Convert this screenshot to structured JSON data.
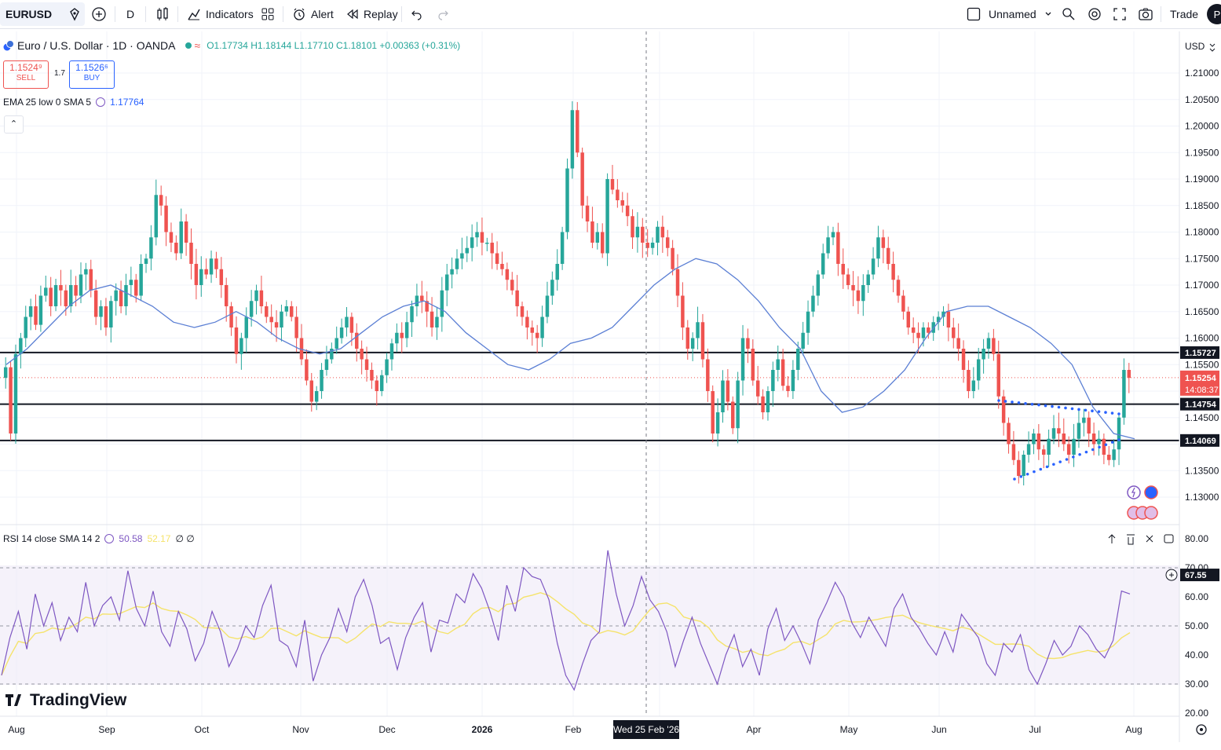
{
  "toolbar": {
    "symbol": "EURUSD",
    "interval": "D",
    "indicators_label": "Indicators",
    "alert_label": "Alert",
    "replay_label": "Replay",
    "layout_name": "Unnamed",
    "trade_label": "Trade",
    "profile_initial": "P"
  },
  "legend": {
    "instrument": "Euro / U.S. Dollar · 1D · OANDA",
    "ohlc": "O1.17734 H1.18144 L1.17710 C1.18101 +0.00363 (+0.31%)",
    "sell_price": "1.1524⁹",
    "sell_label": "SELL",
    "spread": "1.7",
    "buy_price": "1.1526⁶",
    "buy_label": "BUY",
    "ema_label": "EMA 25 low 0 SMA 5",
    "ema_value": "1.17764",
    "rsi_label": "RSI 14 close SMA 14 2",
    "rsi_value": "50.58",
    "rsi_sma_value": "52.17",
    "rsi_extra": "∅ ∅"
  },
  "colors": {
    "up": "#26a69a",
    "down": "#ef5350",
    "ema": "#5b7fd4",
    "rsi": "#7e57c2",
    "rsi_sma": "#f5e36b",
    "rsi_band": "#ede7f6",
    "pattern_dots": "#2962ff"
  },
  "axis": {
    "currency": "USD",
    "crosshair_date": "Wed 25 Feb '26",
    "watermark": "TradingView"
  },
  "chart_data": {
    "type": "candlestick",
    "symbol": "EURUSD",
    "timeframe": "1D",
    "y_ticks": [
      "1.30000",
      "1.13500",
      "1.14500",
      "1.15500",
      "1.16000",
      "1.16500",
      "1.17000",
      "1.17500",
      "1.18000",
      "1.18500",
      "1.19000",
      "1.19500",
      "1.20000",
      "1.20500",
      "1.21000"
    ],
    "x_ticks": [
      "Aug",
      "Sep",
      "Oct",
      "Nov",
      "Dec",
      "2026",
      "Feb",
      "Mar",
      "Apr",
      "May",
      "Jun",
      "Jul",
      "Aug"
    ],
    "ylim": [
      1.1245,
      1.2145
    ],
    "horizontal_levels": [
      {
        "value": 1.15727,
        "label": "1.15727"
      },
      {
        "value": 1.14754,
        "label": "1.14754"
      },
      {
        "value": 1.14069,
        "label": "1.14069"
      }
    ],
    "last_price": {
      "value": 1.15254,
      "label": "1.15254",
      "countdown": "14:08:37"
    },
    "closes": [
      1.1545,
      1.142,
      1.157,
      1.16,
      1.164,
      1.166,
      1.1625,
      1.168,
      1.1695,
      1.166,
      1.17,
      1.169,
      1.166,
      1.17,
      1.168,
      1.172,
      1.173,
      1.169,
      1.164,
      1.166,
      1.162,
      1.167,
      1.169,
      1.166,
      1.17,
      1.171,
      1.168,
      1.174,
      1.175,
      1.179,
      1.187,
      1.185,
      1.18,
      1.178,
      1.176,
      1.182,
      1.178,
      1.174,
      1.17,
      1.173,
      1.172,
      1.175,
      1.173,
      1.17,
      1.166,
      1.162,
      1.157,
      1.16,
      1.164,
      1.167,
      1.169,
      1.166,
      1.164,
      1.163,
      1.162,
      1.165,
      1.166,
      1.164,
      1.16,
      1.156,
      1.152,
      1.148,
      1.15,
      1.154,
      1.156,
      1.158,
      1.16,
      1.162,
      1.164,
      1.161,
      1.158,
      1.156,
      1.154,
      1.152,
      1.15,
      1.153,
      1.156,
      1.159,
      1.161,
      1.16,
      1.163,
      1.166,
      1.168,
      1.167,
      1.165,
      1.162,
      1.164,
      1.169,
      1.172,
      1.173,
      1.175,
      1.176,
      1.177,
      1.179,
      1.18,
      1.178,
      1.178,
      1.176,
      1.174,
      1.173,
      1.171,
      1.169,
      1.166,
      1.164,
      1.162,
      1.161,
      1.16,
      1.164,
      1.168,
      1.171,
      1.174,
      1.18,
      1.192,
      1.203,
      1.195,
      1.185,
      1.182,
      1.178,
      1.18,
      1.176,
      1.19,
      1.188,
      1.186,
      1.185,
      1.183,
      1.179,
      1.181,
      1.178,
      1.177,
      1.178,
      1.181,
      1.179,
      1.177,
      1.173,
      1.168,
      1.162,
      1.158,
      1.16,
      1.163,
      1.156,
      1.15,
      1.142,
      1.146,
      1.152,
      1.148,
      1.143,
      1.152,
      1.16,
      1.158,
      1.152,
      1.149,
      1.146,
      1.15,
      1.154,
      1.156,
      1.151,
      1.15,
      1.154,
      1.158,
      1.161,
      1.165,
      1.168,
      1.172,
      1.176,
      1.179,
      1.18,
      1.174,
      1.172,
      1.17,
      1.169,
      1.167,
      1.17,
      1.172,
      1.175,
      1.179,
      1.177,
      1.174,
      1.171,
      1.168,
      1.165,
      1.162,
      1.161,
      1.16,
      1.162,
      1.161,
      1.163,
      1.164,
      1.165,
      1.162,
      1.16,
      1.158,
      1.154,
      1.15,
      1.152,
      1.156,
      1.158,
      1.16,
      1.157,
      1.149,
      1.144,
      1.14,
      1.137,
      1.134,
      1.138,
      1.14,
      1.142,
      1.139,
      1.138,
      1.141,
      1.143,
      1.142,
      1.14,
      1.138,
      1.141,
      1.144,
      1.145,
      1.142,
      1.14,
      1.141,
      1.138,
      1.137,
      1.139,
      1.145,
      1.154,
      1.1525
    ],
    "ema_approx": [
      1.155,
      1.158,
      1.162,
      1.166,
      1.169,
      1.17,
      1.168,
      1.166,
      1.163,
      1.162,
      1.163,
      1.165,
      1.163,
      1.16,
      1.158,
      1.157,
      1.158,
      1.161,
      1.164,
      1.166,
      1.167,
      1.165,
      1.161,
      1.158,
      1.155,
      1.154,
      1.156,
      1.159,
      1.16,
      1.162,
      1.166,
      1.17,
      1.173,
      1.175,
      1.174,
      1.171,
      1.167,
      1.162,
      1.158,
      1.15,
      1.146,
      1.147,
      1.15,
      1.154,
      1.16,
      1.165,
      1.166,
      1.166,
      1.164,
      1.162,
      1.159,
      1.155,
      1.147,
      1.142,
      1.141
    ],
    "rsi_levels": {
      "upper": 70,
      "middle": 50,
      "lower": 30
    },
    "rsi_axis": [
      "80.00",
      "70.00",
      "60.00",
      "50.00",
      "40.00",
      "30.00",
      "20.00"
    ],
    "rsi_current": 67.55,
    "rsi_values": [
      33,
      46,
      55,
      42,
      61,
      50,
      58,
      45,
      53,
      48,
      65,
      50,
      57,
      60,
      52,
      69,
      56,
      50,
      62,
      48,
      43,
      55,
      49,
      38,
      44,
      55,
      48,
      36,
      42,
      50,
      46,
      57,
      64,
      45,
      43,
      36,
      52,
      31,
      40,
      46,
      56,
      48,
      60,
      66,
      57,
      44,
      46,
      35,
      46,
      53,
      58,
      41,
      52,
      51,
      61,
      58,
      68,
      63,
      55,
      45,
      64,
      55,
      70,
      67,
      66,
      59,
      44,
      33,
      28,
      37,
      45,
      48,
      76,
      61,
      50,
      57,
      67,
      59,
      55,
      48,
      36,
      45,
      53,
      44,
      37,
      30,
      40,
      47,
      36,
      42,
      33,
      49,
      56,
      45,
      50,
      44,
      37,
      52,
      58,
      65,
      60,
      51,
      46,
      53,
      48,
      43,
      56,
      61,
      53,
      49,
      44,
      40,
      48,
      41,
      54,
      50,
      46,
      37,
      33,
      44,
      41,
      47,
      35,
      30,
      37,
      45,
      40,
      43,
      50,
      47,
      42,
      39,
      45,
      62,
      61
    ]
  }
}
